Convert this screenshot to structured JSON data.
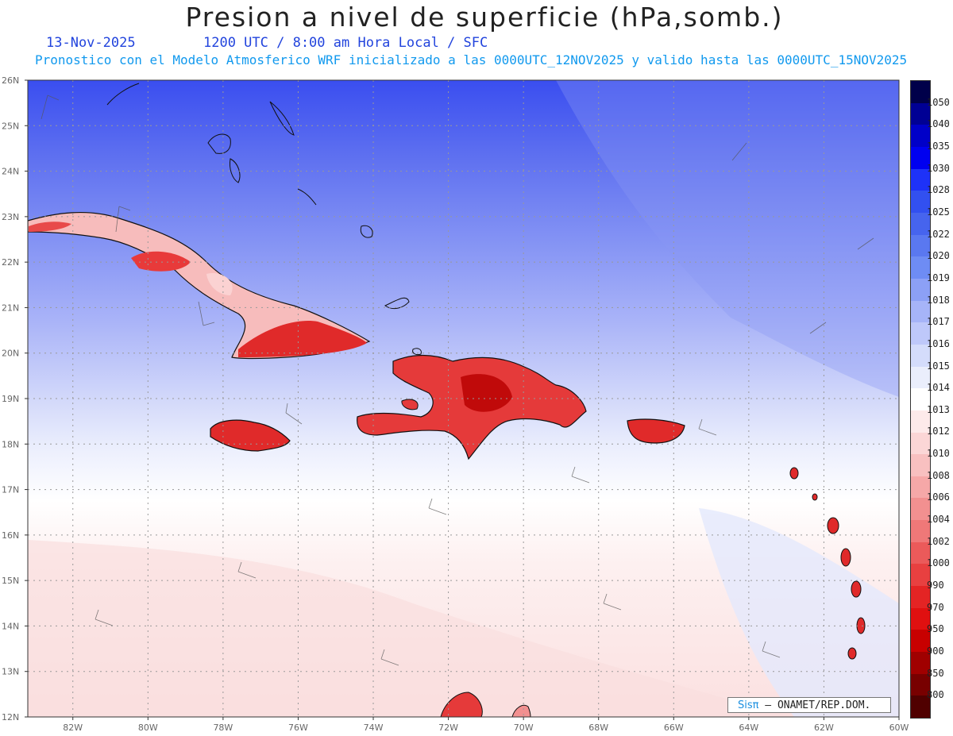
{
  "header": {
    "title": "Presion a nivel de superficie (hPa,somb.)",
    "date": "13-Nov-2025",
    "time_info": "1200 UTC / 8:00 am Hora Local / SFC",
    "model_info": "Pronostico con el Modelo Atmosferico WRF inicializado a las 0000UTC_12NOV2025 y valido hasta las  0000UTC_15NOV2025"
  },
  "map": {
    "lat_labels": [
      "26N",
      "25N",
      "24N",
      "23N",
      "22N",
      "21N",
      "20N",
      "19N",
      "18N",
      "17N",
      "16N",
      "15N",
      "14N",
      "13N",
      "12N"
    ],
    "lon_labels": [
      "82W",
      "80W",
      "78W",
      "76W",
      "74W",
      "72W",
      "70W",
      "68W",
      "66W",
      "64W",
      "62W",
      "60W"
    ],
    "lat_range": [
      12,
      26
    ],
    "lon_range": [
      -83.2,
      -60
    ],
    "grid": "dotted",
    "places": [
      "Cuba",
      "Hispaniola",
      "Jamaica",
      "Puerto Rico",
      "Bahamas",
      "Lesser Antilles"
    ]
  },
  "legend": {
    "levels": [
      "1050",
      "1040",
      "1035",
      "1030",
      "1028",
      "1025",
      "1022",
      "1020",
      "1019",
      "1018",
      "1017",
      "1016",
      "1015",
      "1014",
      "1013",
      "1012",
      "1010",
      "1008",
      "1006",
      "1004",
      "1002",
      "1000",
      "990",
      "970",
      "950",
      "900",
      "850",
      "800"
    ],
    "colors": [
      "#00004a",
      "#000094",
      "#0000c8",
      "#0000f0",
      "#1e32f8",
      "#3250f0",
      "#4664ee",
      "#5a78f0",
      "#6e8cf4",
      "#8ca0f6",
      "#a6b4f8",
      "#bec8fa",
      "#d4dcfb",
      "#eaeefc",
      "#ffffff",
      "#fdeaea",
      "#fbd6d6",
      "#f8c0c0",
      "#f6a8a8",
      "#f29090",
      "#ef7878",
      "#eb5a5a",
      "#e84040",
      "#e42424",
      "#e01010",
      "#c80000",
      "#a00000",
      "#780000",
      "#500000"
    ]
  },
  "credit": {
    "brand": "Sisπ",
    "text": "– ONAMET/REP.DOM."
  }
}
